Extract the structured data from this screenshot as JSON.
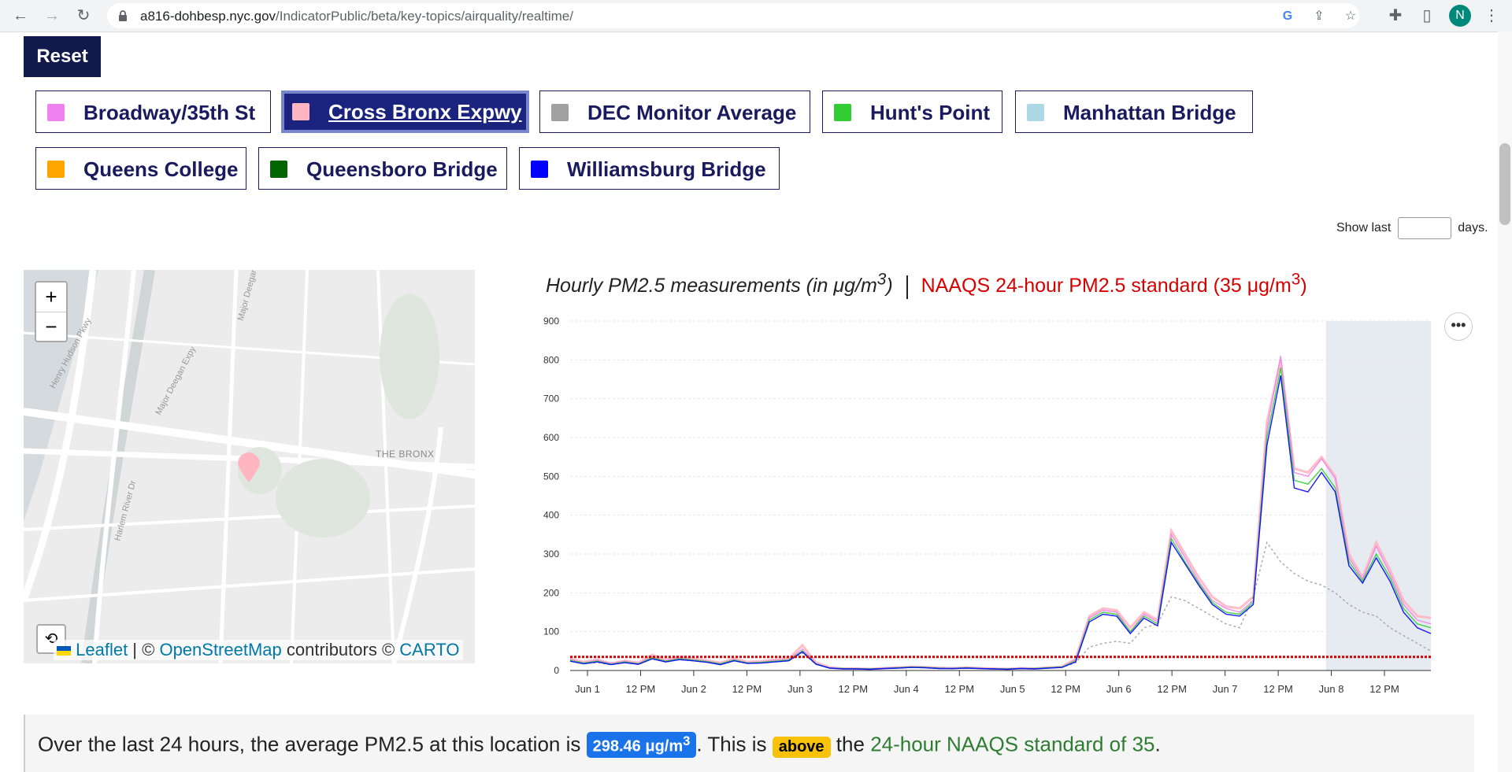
{
  "browser": {
    "url_host": "a816-dohbesp.nyc.gov",
    "url_path": "/IndicatorPublic/beta/key-topics/airquality/realtime/",
    "avatar_letter": "N"
  },
  "reset_label": "Reset",
  "legend": [
    {
      "label": "Broadway/35th St",
      "color": "#ee82ee",
      "active": false
    },
    {
      "label": "Cross Bronx Expwy",
      "color": "#ffb6c1",
      "active": true
    },
    {
      "label": "DEC Monitor Average",
      "color": "#a0a0a0",
      "active": false
    },
    {
      "label": "Hunt's Point",
      "color": "#32cd32",
      "active": false
    },
    {
      "label": "Manhattan Bridge",
      "color": "#add8e6",
      "active": false
    },
    {
      "label": "Queens College",
      "color": "#ffa500",
      "active": false
    },
    {
      "label": "Queensboro Bridge",
      "color": "#006400",
      "active": false
    },
    {
      "label": "Williamsburg Bridge",
      "color": "#0000ff",
      "active": false
    }
  ],
  "show_last": {
    "prefix": "Show last",
    "suffix": "days.",
    "value": ""
  },
  "map": {
    "zoom_in": "+",
    "zoom_out": "−",
    "area_label": "THE BRONX",
    "roads": [
      "Henry Hudson Pkwy",
      "Major Deegan Expy",
      "Harlem River Dr",
      "Major Deegan"
    ],
    "attribution": {
      "leaflet": "Leaflet",
      "osm": "OpenStreetMap",
      "contributors": "contributors ©",
      "carto": "CARTO"
    }
  },
  "chart_title": {
    "main": "Hourly PM2.5 measurements (in μg/m",
    "main_sup": "3",
    "main_end": ")",
    "standard": "NAAQS 24-hour PM2.5 standard (35 μg/m",
    "standard_sup": "3",
    "standard_end": ")"
  },
  "chart_data": {
    "type": "line",
    "title": "Hourly PM2.5 measurements (in μg/m3)",
    "ylim": [
      0,
      900
    ],
    "yticks": [
      0,
      100,
      200,
      300,
      400,
      500,
      600,
      700,
      800,
      900
    ],
    "xtick_labels": [
      "Jun 1",
      "12 PM",
      "Jun 2",
      "12 PM",
      "Jun 3",
      "12 PM",
      "Jun 4",
      "12 PM",
      "Jun 5",
      "12 PM",
      "Jun 6",
      "12 PM",
      "Jun 7",
      "12 PM",
      "Jun 8",
      "12 PM"
    ],
    "threshold": {
      "label": "NAAQS 24-hour PM2.5 standard (35 μg/m3)",
      "value": 35,
      "color": "#d60000"
    },
    "grid": true,
    "series": [
      {
        "name": "Cross Bronx Expwy",
        "color": "#ffb6c1",
        "values": [
          30,
          22,
          28,
          18,
          25,
          20,
          40,
          28,
          35,
          30,
          26,
          20,
          30,
          22,
          24,
          28,
          30,
          65,
          20,
          8,
          5,
          5,
          4,
          6,
          8,
          10,
          9,
          7,
          6,
          8,
          6,
          5,
          4,
          6,
          5,
          8,
          10,
          30,
          140,
          160,
          155,
          110,
          150,
          130,
          360,
          300,
          240,
          190,
          165,
          160,
          190,
          640,
          800,
          520,
          510,
          550,
          500,
          300,
          240,
          330,
          260,
          180,
          140,
          135
        ]
      },
      {
        "name": "Broadway/35th St",
        "color": "#ee82ee",
        "values": [
          28,
          20,
          26,
          18,
          24,
          18,
          35,
          25,
          32,
          28,
          24,
          18,
          28,
          20,
          22,
          26,
          28,
          55,
          18,
          7,
          5,
          5,
          4,
          6,
          8,
          9,
          8,
          6,
          5,
          7,
          5,
          5,
          4,
          6,
          5,
          7,
          9,
          28,
          135,
          155,
          150,
          100,
          145,
          125,
          350,
          290,
          230,
          180,
          160,
          150,
          180,
          620,
          810,
          510,
          500,
          545,
          495,
          290,
          235,
          320,
          250,
          170,
          130,
          120
        ]
      },
      {
        "name": "DEC Monitor Average",
        "color": "#a0a0a0",
        "values": [
          25,
          18,
          20,
          15,
          20,
          16,
          30,
          22,
          28,
          25,
          22,
          16,
          25,
          18,
          20,
          22,
          25,
          45,
          16,
          6,
          4,
          4,
          3,
          5,
          7,
          8,
          7,
          5,
          5,
          6,
          5,
          4,
          3,
          5,
          4,
          6,
          8,
          20,
          60,
          70,
          75,
          70,
          110,
          120,
          190,
          180,
          160,
          140,
          120,
          110,
          190,
          330,
          280,
          250,
          230,
          220,
          200,
          170,
          150,
          140,
          110,
          90,
          70,
          50
        ]
      },
      {
        "name": "Hunt's Point",
        "color": "#32cd32",
        "values": [
          26,
          19,
          24,
          16,
          22,
          17,
          33,
          24,
          30,
          27,
          23,
          17,
          27,
          19,
          21,
          24,
          27,
          50,
          17,
          6,
          5,
          4,
          4,
          5,
          7,
          9,
          8,
          6,
          5,
          7,
          5,
          4,
          4,
          5,
          5,
          7,
          9,
          25,
          130,
          150,
          145,
          100,
          140,
          120,
          340,
          280,
          225,
          175,
          150,
          145,
          175,
          600,
          780,
          490,
          480,
          520,
          470,
          280,
          230,
          300,
          240,
          160,
          120,
          110
        ]
      },
      {
        "name": "Williamsburg Bridge",
        "color": "#0000ff",
        "values": [
          24,
          17,
          22,
          15,
          20,
          16,
          30,
          22,
          28,
          25,
          21,
          15,
          25,
          18,
          19,
          22,
          25,
          48,
          16,
          6,
          4,
          4,
          3,
          5,
          6,
          8,
          7,
          5,
          5,
          6,
          5,
          4,
          3,
          5,
          4,
          6,
          8,
          22,
          125,
          145,
          140,
          95,
          135,
          115,
          330,
          275,
          220,
          170,
          145,
          140,
          170,
          580,
          760,
          470,
          460,
          510,
          460,
          270,
          225,
          290,
          230,
          150,
          110,
          95
        ]
      }
    ]
  },
  "summary": {
    "part1": "Over the last 24 hours, the average PM2.5 at this location is",
    "value": "298.46 μg/m",
    "value_sup": "3",
    "part2": ". This is",
    "status": "above",
    "part3": "the",
    "standard": "24-hour NAAQS standard of 35",
    "end": "."
  }
}
